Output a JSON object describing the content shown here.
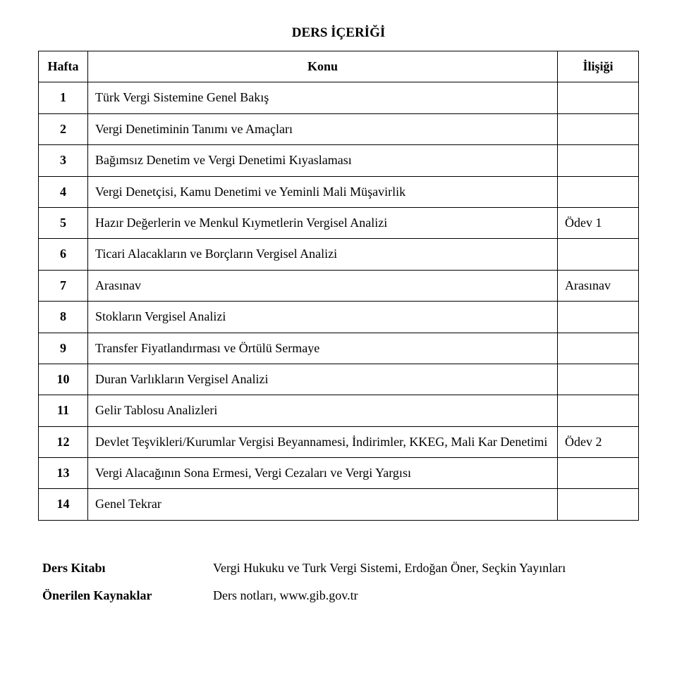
{
  "title": "DERS İÇERİĞİ",
  "headers": {
    "week": "Hafta",
    "topic": "Konu",
    "relation": "İlişiği"
  },
  "rows": [
    {
      "week": "1",
      "topic": "Türk Vergi Sistemine Genel Bakış",
      "relation": ""
    },
    {
      "week": "2",
      "topic": "Vergi Denetiminin Tanımı ve Amaçları",
      "relation": ""
    },
    {
      "week": "3",
      "topic": "Bağımsız Denetim ve Vergi Denetimi Kıyaslaması",
      "relation": ""
    },
    {
      "week": "4",
      "topic": "Vergi Denetçisi, Kamu Denetimi ve Yeminli Mali Müşavirlik",
      "relation": ""
    },
    {
      "week": "5",
      "topic": "Hazır Değerlerin ve Menkul Kıymetlerin Vergisel Analizi",
      "relation": "Ödev 1"
    },
    {
      "week": "6",
      "topic": "Ticari Alacakların ve Borçların Vergisel Analizi",
      "relation": ""
    },
    {
      "week": "7",
      "topic": "Arasınav",
      "relation": "Arasınav"
    },
    {
      "week": "8",
      "topic": "Stokların Vergisel Analizi",
      "relation": ""
    },
    {
      "week": "9",
      "topic": "Transfer Fiyatlandırması ve Örtülü Sermaye",
      "relation": ""
    },
    {
      "week": "10",
      "topic": "Duran Varlıkların Vergisel Analizi",
      "relation": ""
    },
    {
      "week": "11",
      "topic": "Gelir Tablosu Analizleri",
      "relation": ""
    },
    {
      "week": "12",
      "topic": "Devlet Teşvikleri/Kurumlar Vergisi Beyannamesi, İndirimler, KKEG, Mali Kar Denetimi",
      "relation": "Ödev 2"
    },
    {
      "week": "13",
      "topic": "Vergi Alacağının Sona Ermesi, Vergi Cezaları ve Vergi Yargısı",
      "relation": ""
    },
    {
      "week": "14",
      "topic": "Genel Tekrar",
      "relation": ""
    }
  ],
  "refs": {
    "textbook_label": "Ders Kitabı",
    "textbook_value": "Vergi Hukuku ve Turk Vergi Sistemi, Erdoğan Öner, Seçkin Yayınları",
    "recommended_label": "Önerilen Kaynaklar",
    "recommended_value": "Ders notları, www.gib.gov.tr"
  }
}
